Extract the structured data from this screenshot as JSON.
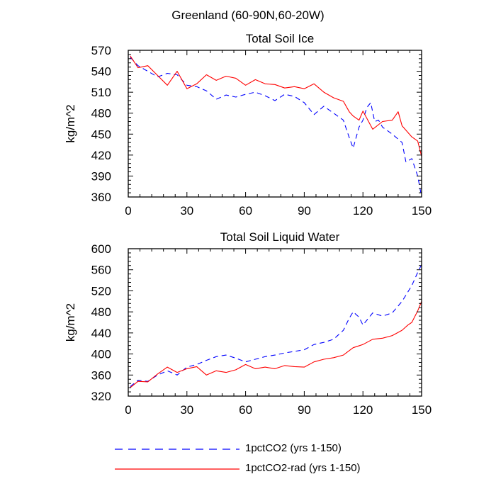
{
  "figure_title": "Greenland (60-90N,60-20W)",
  "legend": [
    {
      "label": "1pctCO2 (yrs 1-150)",
      "color": "#0000ff",
      "dash": "dashed"
    },
    {
      "label": "1pctCO2-rad (yrs 1-150)",
      "color": "#ff0000",
      "dash": "solid"
    }
  ],
  "chart_data": [
    {
      "type": "line",
      "title": "Total Soil Ice",
      "xlabel": "",
      "ylabel": "kg/m^2",
      "xlim": [
        0,
        150
      ],
      "ylim": [
        360,
        570
      ],
      "xticks": [
        0,
        30,
        60,
        90,
        120,
        150
      ],
      "yticks": [
        360,
        390,
        420,
        450,
        480,
        510,
        540,
        570
      ],
      "grid": false,
      "series": [
        {
          "name": "1pctCO2 (yrs 1-150)",
          "color": "#0000ff",
          "style": "dashed",
          "x": [
            1,
            5,
            10,
            15,
            20,
            25,
            30,
            35,
            40,
            45,
            50,
            55,
            60,
            65,
            70,
            75,
            80,
            85,
            90,
            95,
            100,
            105,
            110,
            113,
            115,
            118,
            120,
            122,
            124,
            126,
            128,
            130,
            135,
            140,
            142,
            145,
            148,
            150
          ],
          "y": [
            560,
            548,
            540,
            532,
            537,
            535,
            520,
            518,
            512,
            500,
            506,
            503,
            507,
            510,
            505,
            498,
            507,
            504,
            495,
            478,
            490,
            480,
            470,
            445,
            430,
            460,
            470,
            488,
            495,
            468,
            470,
            460,
            450,
            438,
            410,
            415,
            390,
            360
          ]
        },
        {
          "name": "1pctCO2-rad (yrs 1-150)",
          "color": "#ff0000",
          "style": "solid",
          "x": [
            1,
            5,
            10,
            15,
            20,
            25,
            30,
            35,
            40,
            45,
            50,
            55,
            60,
            65,
            70,
            75,
            80,
            85,
            90,
            95,
            100,
            105,
            110,
            113,
            115,
            118,
            120,
            125,
            130,
            135,
            138,
            140,
            145,
            148,
            150
          ],
          "y": [
            562,
            545,
            548,
            534,
            520,
            540,
            515,
            522,
            535,
            527,
            533,
            530,
            520,
            528,
            522,
            521,
            516,
            518,
            515,
            522,
            510,
            502,
            497,
            482,
            476,
            470,
            483,
            457,
            468,
            470,
            482,
            462,
            446,
            440,
            418
          ]
        }
      ]
    },
    {
      "type": "line",
      "title": "Total Soil Liquid Water",
      "xlabel": "",
      "ylabel": "kg/m^2",
      "xlim": [
        0,
        150
      ],
      "ylim": [
        320,
        600
      ],
      "xticks": [
        0,
        30,
        60,
        90,
        120,
        150
      ],
      "yticks": [
        320,
        360,
        400,
        440,
        480,
        520,
        560,
        600
      ],
      "grid": false,
      "series": [
        {
          "name": "1pctCO2 (yrs 1-150)",
          "color": "#0000ff",
          "style": "dashed",
          "x": [
            1,
            5,
            10,
            15,
            20,
            25,
            30,
            35,
            40,
            45,
            50,
            55,
            60,
            65,
            70,
            75,
            80,
            85,
            90,
            95,
            100,
            105,
            110,
            113,
            115,
            118,
            120,
            125,
            130,
            135,
            140,
            145,
            148,
            150
          ],
          "y": [
            338,
            350,
            348,
            360,
            368,
            360,
            375,
            380,
            388,
            395,
            398,
            392,
            385,
            390,
            395,
            398,
            402,
            405,
            408,
            418,
            422,
            428,
            445,
            468,
            480,
            470,
            455,
            478,
            472,
            478,
            500,
            530,
            555,
            570
          ]
        },
        {
          "name": "1pctCO2-rad (yrs 1-150)",
          "color": "#ff0000",
          "style": "solid",
          "x": [
            1,
            5,
            10,
            15,
            20,
            25,
            30,
            35,
            40,
            45,
            50,
            55,
            60,
            65,
            70,
            75,
            80,
            85,
            90,
            95,
            100,
            105,
            110,
            115,
            120,
            125,
            130,
            135,
            140,
            143,
            145,
            148,
            150
          ],
          "y": [
            336,
            348,
            347,
            362,
            375,
            365,
            372,
            376,
            360,
            368,
            365,
            370,
            380,
            372,
            375,
            372,
            378,
            376,
            375,
            385,
            390,
            393,
            398,
            412,
            418,
            428,
            430,
            435,
            445,
            455,
            460,
            482,
            500
          ]
        }
      ]
    }
  ]
}
